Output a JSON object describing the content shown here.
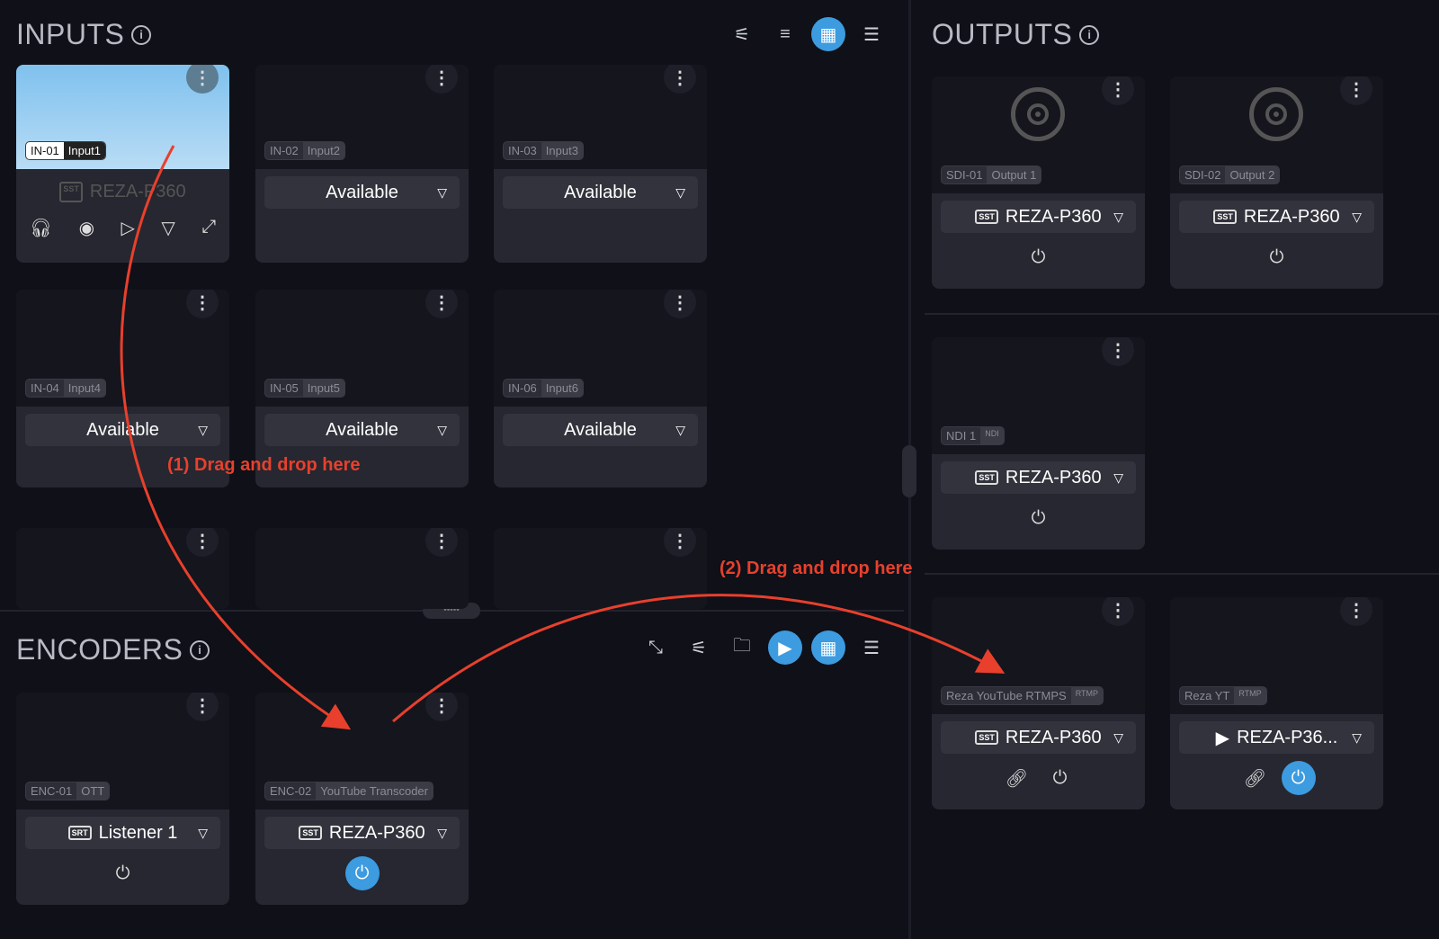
{
  "inputs": {
    "title": "INPUTS",
    "cards": [
      {
        "id": "IN-01",
        "name": "Input1",
        "device": "REZA-P360",
        "preview": true
      },
      {
        "id": "IN-02",
        "name": "Input2",
        "select": "Available"
      },
      {
        "id": "IN-03",
        "name": "Input3",
        "select": "Available"
      },
      {
        "id": "IN-04",
        "name": "Input4",
        "select": "Available"
      },
      {
        "id": "IN-05",
        "name": "Input5",
        "select": "Available"
      },
      {
        "id": "IN-06",
        "name": "Input6",
        "select": "Available"
      },
      {},
      {},
      {}
    ],
    "toolbar": [
      "sliders-icon",
      "filter-icon",
      "grid-view-icon",
      "list-view-icon"
    ]
  },
  "encoders": {
    "title": "ENCODERS",
    "cards": [
      {
        "id": "ENC-01",
        "name": "OTT",
        "select": "Listener 1",
        "icon": "srt-icon",
        "power_on": false
      },
      {
        "id": "ENC-02",
        "name": "YouTube Transcoder",
        "select": "REZA-P360",
        "icon": "sst",
        "power_on": true
      }
    ],
    "toolbar": [
      "collapse-icon",
      "sliders-icon",
      "folder-icon",
      "file-play-icon",
      "grid-view-icon",
      "list-view-icon"
    ]
  },
  "outputs": {
    "title": "OUTPUTS",
    "cards": [
      {
        "id": "SDI-01",
        "name": "Output 1",
        "select": "REZA-P360",
        "icon": "sst",
        "power_on": false,
        "sdi": true
      },
      {
        "id": "SDI-02",
        "name": "Output 2",
        "select": "REZA-P360",
        "icon": "sst",
        "power_on": false,
        "sdi": true
      },
      {
        "id": "NDI 1",
        "badge": "NDI",
        "select": "REZA-P360",
        "icon": "sst",
        "power_on": false
      },
      {
        "id": "Reza YouTube RTMPS",
        "badge": "RTMP",
        "select": "REZA-P360",
        "icon": "sst",
        "power_on": false,
        "link": true
      },
      {
        "id": "Reza YT",
        "badge": "RTMP",
        "select": "REZA-P36...",
        "icon": "file",
        "power_on": true,
        "link": true
      }
    ]
  },
  "annotations": {
    "drag1": "(1) Drag and drop here",
    "drag2": "(2) Drag and drop here"
  },
  "colors": {
    "accent": "#3d9be0",
    "arrow": "#e8402c"
  }
}
